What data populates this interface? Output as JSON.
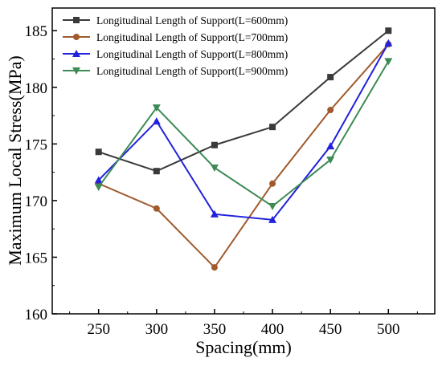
{
  "chart_data": {
    "type": "line",
    "title": "",
    "xlabel": "Spacing(mm)",
    "ylabel": "Maximum Local Stress(MPa)",
    "x": [
      250,
      300,
      350,
      400,
      450,
      500
    ],
    "xlim": [
      210,
      540
    ],
    "ylim": [
      160,
      187
    ],
    "xticks": [
      "250",
      "300",
      "350",
      "400",
      "450",
      "500"
    ],
    "yticks": [
      "160",
      "165",
      "170",
      "175",
      "180",
      "185"
    ],
    "grid": false,
    "legend_position": "top-left",
    "series": [
      {
        "name": "Longitudinal Length of Support(L=600mm)",
        "color": "#3a3a3a",
        "marker": "square",
        "values": [
          174.3,
          172.6,
          174.9,
          176.5,
          180.9,
          185.0
        ]
      },
      {
        "name": "Longitudinal Length of Support(L=700mm)",
        "color": "#a05a2c",
        "marker": "circle",
        "values": [
          171.5,
          169.3,
          164.1,
          171.5,
          178.0,
          183.8
        ]
      },
      {
        "name": "Longitudinal Length of Support(L=800mm)",
        "color": "#2222dd",
        "marker": "triangle-up",
        "values": [
          171.8,
          177.0,
          168.8,
          168.3,
          174.8,
          183.9
        ]
      },
      {
        "name": "Longitudinal Length of Support(L=900mm)",
        "color": "#3d8a55",
        "marker": "triangle-down",
        "values": [
          171.2,
          178.2,
          172.9,
          169.5,
          173.6,
          182.3
        ]
      }
    ]
  }
}
